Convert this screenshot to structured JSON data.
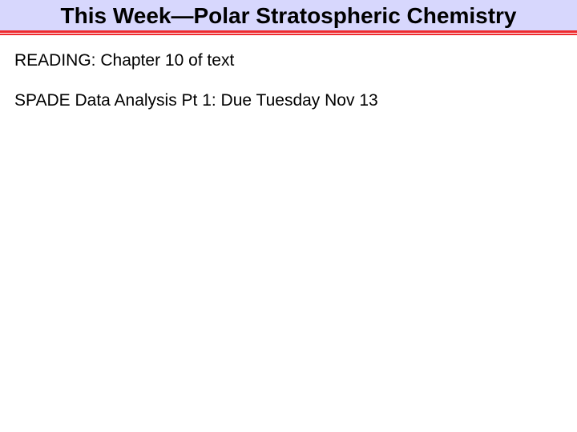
{
  "title": "This Week—Polar Stratospheric Chemistry",
  "reading": "READING: Chapter 10 of text",
  "assignment": "SPADE Data Analysis Pt 1: Due Tuesday Nov 13",
  "colors": {
    "title_bg": "#d7d7fd",
    "divider": "#ee2a2e",
    "text": "#000000",
    "background": "#ffffff"
  },
  "typography": {
    "title_font": "Comic Sans MS",
    "title_size_pt": 28,
    "title_weight": "bold",
    "body_font": "Comic Sans MS",
    "body_size_pt": 21
  }
}
